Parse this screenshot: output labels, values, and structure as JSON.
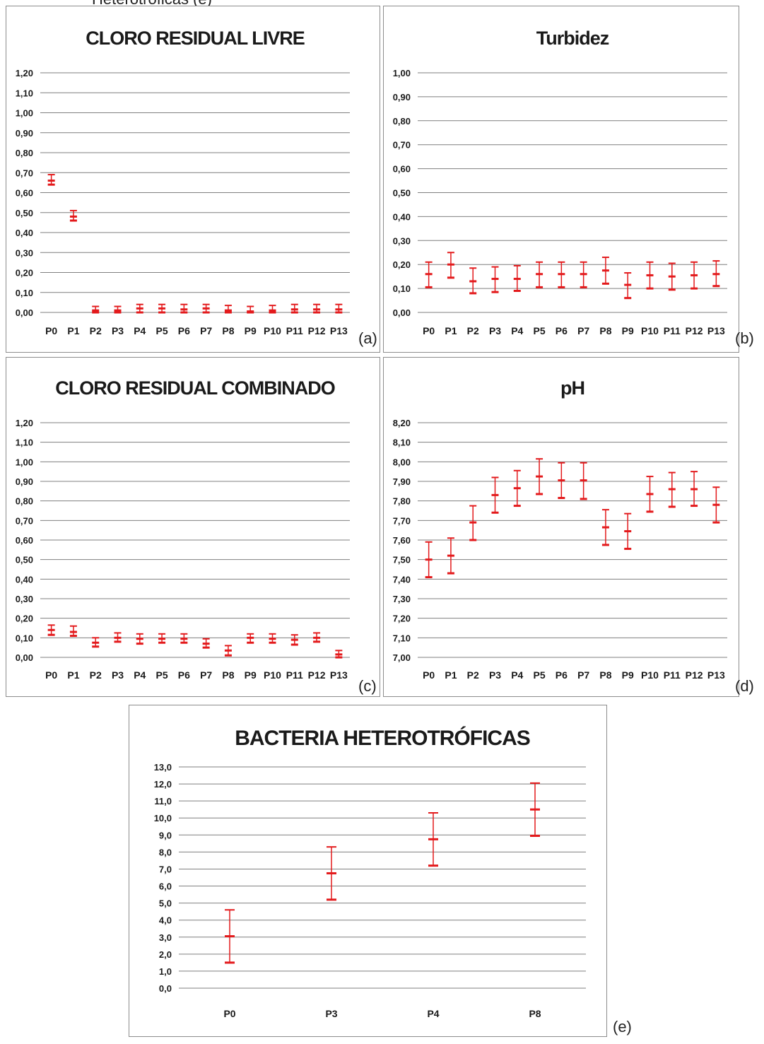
{
  "top_fragment": "Heterotróficas (e)",
  "colors": {
    "errorbar": "#e31a1c",
    "grid": "#7f7f7f",
    "border": "#8c8c8c",
    "text": "#1a1a1a"
  },
  "chart_data": [
    {
      "id": "a",
      "panel_label": "(a)",
      "type": "scatter",
      "title": "CLORO RESIDUAL LIVRE",
      "xlabel": "",
      "ylabel": "",
      "categories": [
        "P0",
        "P1",
        "P2",
        "P3",
        "P4",
        "P5",
        "P6",
        "P7",
        "P8",
        "P9",
        "P10",
        "P11",
        "P12",
        "P13"
      ],
      "ylim": [
        0,
        1.2
      ],
      "ystep": 0.1,
      "ydecimals": 2,
      "grid": true,
      "legend": "none",
      "series": [
        {
          "mean": [
            0.66,
            0.48,
            0.01,
            0.01,
            0.02,
            0.02,
            0.015,
            0.02,
            0.01,
            0.005,
            0.01,
            0.015,
            0.015,
            0.015
          ],
          "lower": [
            0.64,
            0.46,
            0.0,
            0.0,
            0.0,
            0.0,
            0.0,
            0.0,
            0.0,
            0.0,
            0.0,
            0.0,
            0.0,
            0.0
          ],
          "upper": [
            0.69,
            0.51,
            0.03,
            0.03,
            0.04,
            0.04,
            0.04,
            0.04,
            0.035,
            0.03,
            0.035,
            0.04,
            0.04,
            0.04
          ]
        }
      ]
    },
    {
      "id": "b",
      "panel_label": "(b)",
      "type": "scatter",
      "title": "Turbidez",
      "xlabel": "",
      "ylabel": "",
      "categories": [
        "P0",
        "P1",
        "P2",
        "P3",
        "P4",
        "P5",
        "P6",
        "P7",
        "P8",
        "P9",
        "P10",
        "P11",
        "P12",
        "P13"
      ],
      "ylim": [
        0,
        1.0
      ],
      "ystep": 0.1,
      "ydecimals": 2,
      "grid": true,
      "legend": "none",
      "series": [
        {
          "mean": [
            0.16,
            0.2,
            0.13,
            0.14,
            0.14,
            0.16,
            0.16,
            0.16,
            0.175,
            0.115,
            0.155,
            0.15,
            0.155,
            0.16
          ],
          "lower": [
            0.105,
            0.145,
            0.08,
            0.085,
            0.09,
            0.105,
            0.105,
            0.105,
            0.12,
            0.06,
            0.1,
            0.095,
            0.1,
            0.11
          ],
          "upper": [
            0.21,
            0.25,
            0.185,
            0.19,
            0.195,
            0.21,
            0.21,
            0.21,
            0.23,
            0.165,
            0.21,
            0.205,
            0.21,
            0.215
          ]
        }
      ]
    },
    {
      "id": "c",
      "panel_label": "(c)",
      "type": "scatter",
      "title": "CLORO RESIDUAL COMBINADO",
      "xlabel": "",
      "ylabel": "",
      "categories": [
        "P0",
        "P1",
        "P2",
        "P3",
        "P4",
        "P5",
        "P6",
        "P7",
        "P8",
        "P9",
        "P10",
        "P11",
        "P12",
        "P13"
      ],
      "ylim": [
        0,
        1.2
      ],
      "ystep": 0.1,
      "ydecimals": 2,
      "grid": true,
      "legend": "none",
      "series": [
        {
          "mean": [
            0.14,
            0.13,
            0.075,
            0.1,
            0.095,
            0.095,
            0.095,
            0.07,
            0.035,
            0.1,
            0.095,
            0.09,
            0.1,
            0.015
          ],
          "lower": [
            0.115,
            0.11,
            0.055,
            0.08,
            0.07,
            0.075,
            0.075,
            0.05,
            0.01,
            0.075,
            0.075,
            0.065,
            0.08,
            0.0
          ],
          "upper": [
            0.165,
            0.16,
            0.1,
            0.125,
            0.12,
            0.12,
            0.12,
            0.095,
            0.06,
            0.12,
            0.12,
            0.115,
            0.125,
            0.035
          ]
        }
      ]
    },
    {
      "id": "d",
      "panel_label": "(d)",
      "type": "scatter",
      "title": "pH",
      "xlabel": "",
      "ylabel": "",
      "categories": [
        "P0",
        "P1",
        "P2",
        "P3",
        "P4",
        "P5",
        "P6",
        "P7",
        "P8",
        "P9",
        "P10",
        "P11",
        "P12",
        "P13"
      ],
      "ylim": [
        7.0,
        8.2
      ],
      "ystep": 0.1,
      "ydecimals": 2,
      "grid": true,
      "legend": "none",
      "series": [
        {
          "mean": [
            7.5,
            7.52,
            7.69,
            7.83,
            7.865,
            7.925,
            7.905,
            7.905,
            7.665,
            7.645,
            7.835,
            7.86,
            7.86,
            7.78
          ],
          "lower": [
            7.41,
            7.43,
            7.6,
            7.74,
            7.775,
            7.835,
            7.815,
            7.81,
            7.575,
            7.555,
            7.745,
            7.77,
            7.775,
            7.69
          ],
          "upper": [
            7.59,
            7.61,
            7.775,
            7.92,
            7.955,
            8.015,
            7.995,
            7.995,
            7.755,
            7.735,
            7.925,
            7.945,
            7.95,
            7.87
          ]
        }
      ]
    },
    {
      "id": "e",
      "panel_label": "(e)",
      "type": "scatter",
      "title": "BACTERIA HETEROTRÓFICAS",
      "xlabel": "",
      "ylabel": "",
      "categories": [
        "P0",
        "P3",
        "P4",
        "P8"
      ],
      "ylim": [
        0,
        13.0
      ],
      "ystep": 1.0,
      "ydecimals": 1,
      "grid": true,
      "legend": "none",
      "series": [
        {
          "mean": [
            3.05,
            6.75,
            8.75,
            10.5
          ],
          "lower": [
            1.5,
            5.2,
            7.2,
            8.95
          ],
          "upper": [
            4.6,
            8.3,
            10.3,
            12.05
          ]
        }
      ]
    }
  ]
}
